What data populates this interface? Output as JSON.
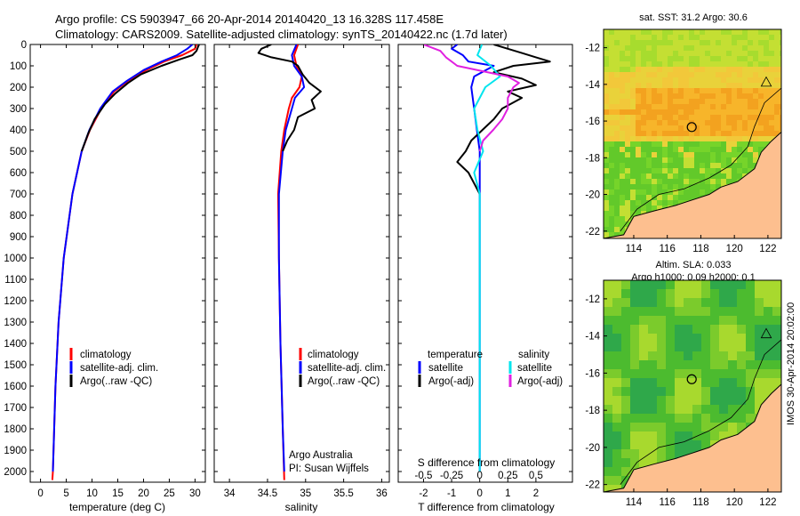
{
  "header": {
    "title_line1": "Argo profile: CS 5903947_66 20-Apr-2014 20140420_13 16.328S 117.458E",
    "title_line2": "Climatology: CARS2009. Satellite-adjusted climatology: synTS_20140422.nc (1.7d later)"
  },
  "depth_ticks": [
    0,
    100,
    200,
    300,
    400,
    500,
    600,
    700,
    800,
    900,
    1000,
    1100,
    1200,
    1300,
    1400,
    1500,
    1600,
    1700,
    1800,
    1900,
    2000
  ],
  "colors": {
    "climatology": "#ff0000",
    "satellite": "#0000ff",
    "argo": "#000000",
    "sat_salinity": "#00e5ee",
    "argo_salinity": "#e020e0"
  },
  "chart_data": [
    {
      "id": "temperature",
      "type": "line",
      "xlabel": "temperature (deg C)",
      "ylabel": "depth",
      "xlim": [
        -2,
        32
      ],
      "ylim": [
        2050,
        0
      ],
      "xticks": [
        0,
        5,
        10,
        15,
        20,
        25,
        30
      ],
      "legend": [
        "climatology",
        "satellite-adj. clim.",
        "Argo(..raw -QC)"
      ],
      "series": [
        {
          "name": "climatology",
          "depth": [
            0,
            20,
            50,
            80,
            120,
            170,
            220,
            300,
            400,
            500,
            700,
            1000,
            1300,
            1600,
            2000,
            2040
          ],
          "values": [
            30.3,
            30.0,
            27.5,
            24.0,
            20.5,
            17.0,
            14.3,
            11.8,
            9.6,
            8.0,
            6.2,
            4.5,
            3.5,
            2.9,
            2.4,
            2.3
          ]
        },
        {
          "name": "satellite-adj. clim.",
          "depth": [
            0,
            20,
            50,
            80,
            120,
            170,
            220,
            300,
            400,
            500,
            700,
            1000,
            1300,
            1600,
            2000
          ],
          "values": [
            29.5,
            28.5,
            26.5,
            23.5,
            20.0,
            16.8,
            14.0,
            11.6,
            9.5,
            8.0,
            6.2,
            4.5,
            3.5,
            2.9,
            2.4
          ]
        },
        {
          "name": "Argo(..raw -QC)",
          "depth": [
            0,
            10,
            30,
            50,
            70,
            100,
            140,
            180,
            230,
            280,
            350,
            420,
            500
          ],
          "values": [
            30.8,
            30.6,
            30.3,
            29.5,
            27.0,
            23.5,
            19.5,
            17.0,
            14.5,
            12.5,
            10.5,
            9.2,
            8.0
          ]
        }
      ]
    },
    {
      "id": "salinity",
      "type": "line",
      "xlabel": "salinity",
      "ylabel": "depth",
      "xlim": [
        33.8,
        36.1
      ],
      "ylim": [
        2050,
        0
      ],
      "xticks": [
        34,
        34.5,
        35,
        35.5,
        36
      ],
      "xtick_labels": [
        "34",
        "34.5",
        "35",
        "35.5",
        "36"
      ],
      "legend": [
        "climatology",
        "satellite-adj. clim.",
        "Argo(..raw -QC)"
      ],
      "annotations": [
        "Argo Australia",
        "PI: Susan Wijffels"
      ],
      "series": [
        {
          "name": "climatology",
          "depth": [
            0,
            50,
            100,
            150,
            200,
            250,
            300,
            400,
            500,
            700,
            1000,
            1400,
            1800,
            2040
          ],
          "values": [
            34.9,
            34.85,
            34.88,
            34.95,
            34.92,
            34.82,
            34.78,
            34.72,
            34.68,
            34.64,
            34.65,
            34.67,
            34.7,
            34.72
          ]
        },
        {
          "name": "satellite-adj. clim.",
          "depth": [
            0,
            50,
            100,
            150,
            200,
            250,
            300,
            400,
            500,
            700,
            1000,
            1400,
            1800,
            2000
          ],
          "values": [
            34.88,
            34.82,
            34.85,
            34.95,
            34.98,
            34.86,
            34.82,
            34.74,
            34.7,
            34.65,
            34.65,
            34.67,
            34.7,
            34.72
          ]
        },
        {
          "name": "Argo(..raw -QC)",
          "depth": [
            0,
            20,
            40,
            60,
            80,
            100,
            140,
            180,
            220,
            260,
            300,
            340,
            400,
            450,
            500
          ],
          "values": [
            34.55,
            34.42,
            34.38,
            34.55,
            34.82,
            34.9,
            34.96,
            35.05,
            35.2,
            35.08,
            35.12,
            34.9,
            34.85,
            34.76,
            34.7
          ]
        }
      ]
    },
    {
      "id": "differences",
      "type": "line",
      "xlabel": "T difference from climatology",
      "x2label": "S difference from climatology",
      "ylabel": "depth",
      "xlim": [
        -2.9,
        3.3
      ],
      "ylim": [
        2050,
        0
      ],
      "xticks": [
        -2,
        -1,
        0,
        1,
        2
      ],
      "x2ticks": [
        -0.5,
        -0.25,
        0,
        0.25,
        0.5
      ],
      "x2tick_labels": [
        "-0.5",
        "-0.25",
        "0",
        "0.25",
        "0.5"
      ],
      "legend_temperature_title": "temperature",
      "legend_salinity_title": "salinity",
      "legend": [
        "satellite",
        "Argo(-adj)",
        "satellite",
        "Argo(-adj)"
      ],
      "series": [
        {
          "name": "T satellite",
          "depth": [
            0,
            20,
            50,
            80,
            100,
            150,
            200,
            300,
            400,
            500,
            700,
            1000,
            1500,
            2000
          ],
          "values": [
            -0.8,
            -1.0,
            -0.6,
            -0.4,
            0.5,
            -0.2,
            -0.3,
            -0.2,
            -0.1,
            0,
            0,
            0,
            0,
            0
          ]
        },
        {
          "name": "T Argo(-adj)",
          "depth": [
            0,
            20,
            40,
            60,
            80,
            100,
            130,
            160,
            190,
            220,
            250,
            300,
            350,
            400,
            450,
            500,
            550,
            600,
            700
          ],
          "values": [
            0.5,
            1.0,
            1.5,
            2.0,
            2.5,
            1.2,
            0.5,
            1.5,
            2.0,
            1.0,
            1.5,
            0.8,
            0.5,
            0.1,
            -0.3,
            -0.5,
            -0.8,
            -0.4,
            0
          ]
        },
        {
          "name": "S satellite",
          "depth": [
            0,
            50,
            100,
            150,
            200,
            300,
            400,
            500,
            600,
            700,
            1000,
            1500,
            2000
          ],
          "values": [
            0.02,
            -0.02,
            0.1,
            0.18,
            0.05,
            -0.05,
            -0.02,
            0.03,
            -0.05,
            0,
            0,
            0,
            0
          ]
        },
        {
          "name": "S Argo(-adj)",
          "depth": [
            0,
            30,
            60,
            100,
            150,
            180,
            200,
            250,
            300,
            350,
            400,
            450,
            500
          ],
          "values": [
            -0.5,
            -0.35,
            -0.3,
            -0.2,
            0.25,
            0.35,
            0.3,
            0.25,
            0.25,
            0.2,
            0.12,
            0.03,
            0
          ]
        }
      ]
    },
    {
      "id": "sst_map",
      "type": "heatmap",
      "title": "sat. SST: 31.2  Argo: 30.6",
      "xlim": [
        112.2,
        122.8
      ],
      "ylim": [
        -22.4,
        -11
      ],
      "xticks": [
        114,
        116,
        118,
        120,
        122
      ],
      "yticks": [
        -12,
        -14,
        -16,
        -18,
        -20,
        -22
      ],
      "marker": {
        "lon": 117.458,
        "lat": -16.328
      }
    },
    {
      "id": "sla_map",
      "type": "heatmap",
      "title_line1": "Altim. SLA: 0.033",
      "title_line2": "Argo h1000: 0.09 h2000: 0.1",
      "xlim": [
        112.2,
        122.8
      ],
      "ylim": [
        -22.4,
        -11
      ],
      "xticks": [
        114,
        116,
        118,
        120,
        122
      ],
      "yticks": [
        -12,
        -14,
        -16,
        -18,
        -20,
        -22
      ],
      "marker": {
        "lon": 117.458,
        "lat": -16.328
      }
    }
  ],
  "footer": {
    "stamp": "IMOS 30-Apr-2014 20:02:00"
  }
}
